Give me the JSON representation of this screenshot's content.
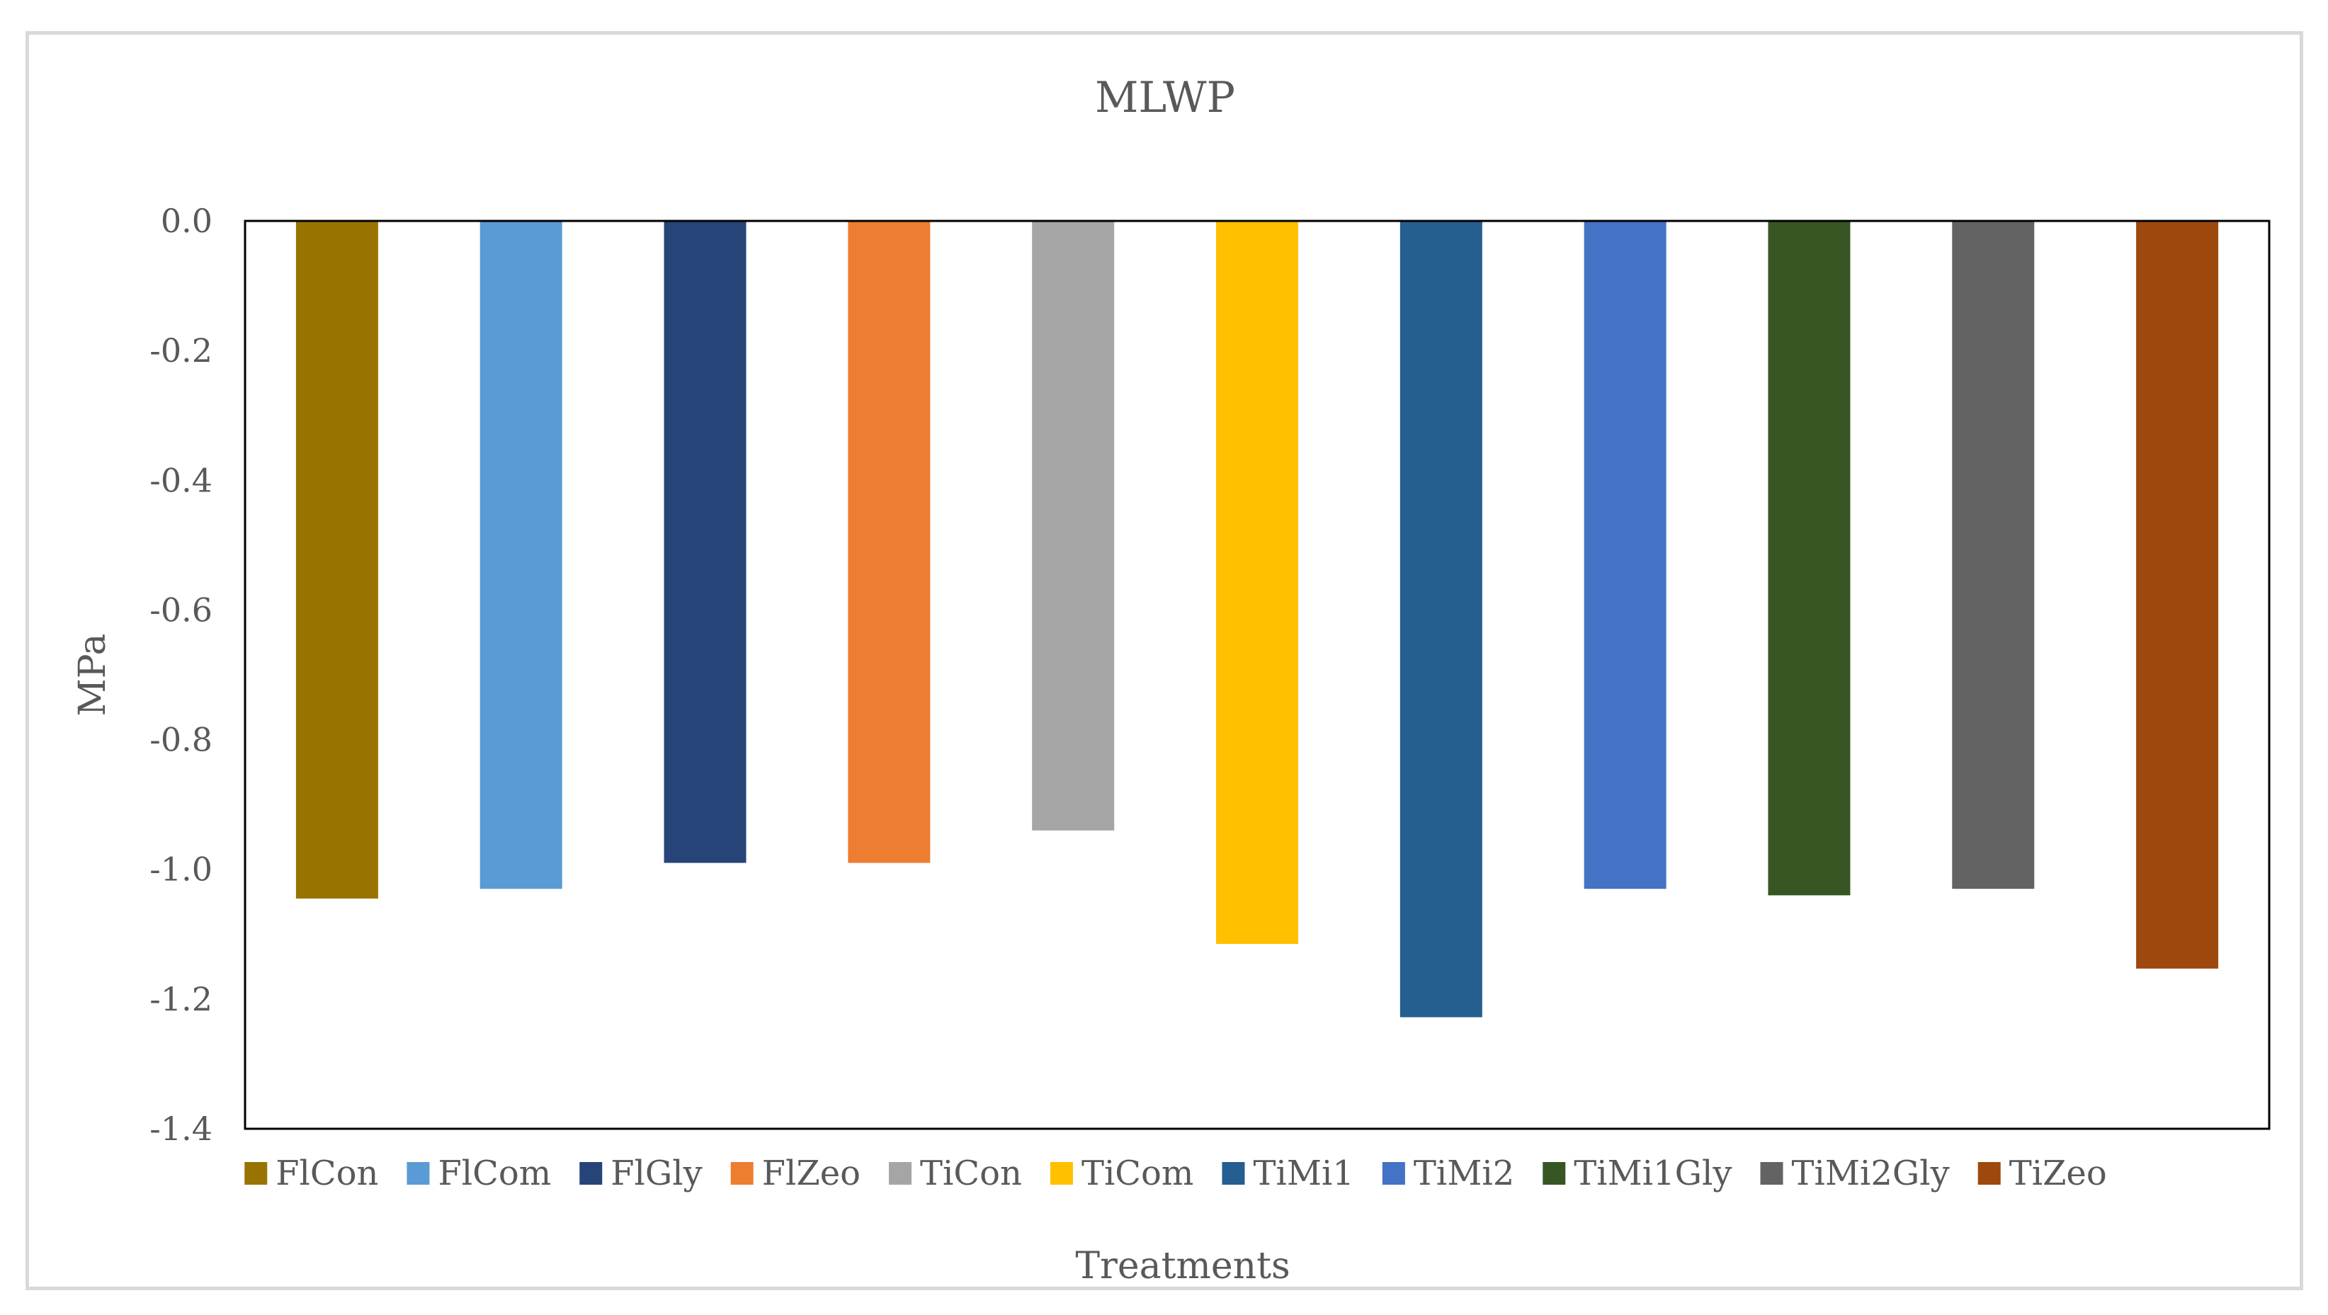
{
  "chart_data": {
    "type": "bar",
    "title": "MLWP",
    "xlabel": "Treatments",
    "ylabel": "MPa",
    "ylim": [
      -1.4,
      0.0
    ],
    "yticks": [
      "0.0",
      "-0.2",
      "-0.4",
      "-0.6",
      "-0.8",
      "-1.0",
      "-1.2",
      "-1.4"
    ],
    "grid": false,
    "legend_position": "bottom",
    "series": [
      {
        "name": "FlCon",
        "value": -1.045,
        "color": "#997300"
      },
      {
        "name": "FlCom",
        "value": -1.03,
        "color": "#5b9bd5"
      },
      {
        "name": "FlGly",
        "value": -0.99,
        "color": "#264478"
      },
      {
        "name": "FlZeo",
        "value": -0.99,
        "color": "#ed7d31"
      },
      {
        "name": "TiCon",
        "value": -0.94,
        "color": "#a5a5a5"
      },
      {
        "name": "TiCom",
        "value": -1.115,
        "color": "#ffc000"
      },
      {
        "name": "TiMi1",
        "value": -1.228,
        "color": "#255e91"
      },
      {
        "name": "TiMi2",
        "value": -1.03,
        "color": "#4472c4"
      },
      {
        "name": "TiMi1Gly",
        "value": -1.04,
        "color": "#375623"
      },
      {
        "name": "TiMi2Gly",
        "value": -1.03,
        "color": "#636363"
      },
      {
        "name": "TiZeo",
        "value": -1.153,
        "color": "#9e480e"
      }
    ]
  }
}
